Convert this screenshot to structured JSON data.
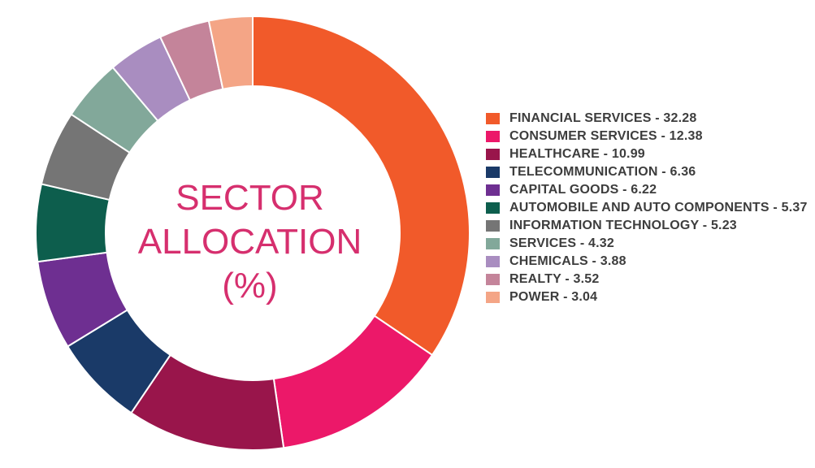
{
  "center_title": {
    "line1": "SECTOR",
    "line2": "ALLOCATION",
    "line3": "(%)"
  },
  "chart_data": {
    "type": "pie",
    "donut": true,
    "title": "SECTOR ALLOCATION (%)",
    "legend_position": "right",
    "categories": [
      "FINANCIAL SERVICES",
      "CONSUMER SERVICES",
      "HEALTHCARE",
      "TELECOMMUNICATION",
      "CAPITAL GOODS",
      "AUTOMOBILE AND AUTO COMPONENTS",
      "INFORMATION TECHNOLOGY",
      "SERVICES",
      "CHEMICALS",
      "REALTY",
      "POWER"
    ],
    "values": [
      32.28,
      12.38,
      10.99,
      6.36,
      6.22,
      5.37,
      5.23,
      4.32,
      3.88,
      3.52,
      3.04
    ],
    "colors": [
      "#f15a2a",
      "#ec1869",
      "#99154b",
      "#1a3a68",
      "#6e2f91",
      "#0d5e4d",
      "#757575",
      "#82a89a",
      "#a98dc0",
      "#c4849a",
      "#f4a586"
    ],
    "legend_labels": [
      "FINANCIAL SERVICES - 32.28",
      "CONSUMER SERVICES - 12.38",
      "HEALTHCARE - 10.99",
      "TELECOMMUNICATION - 6.36",
      "CAPITAL GOODS - 6.22",
      "AUTOMOBILE AND AUTO COMPONENTS  - 5.37",
      "INFORMATION TECHNOLOGY - 5.23",
      "SERVICES - 4.32",
      "CHEMICALS - 3.88",
      "REALTY - 3.52",
      "POWER - 3.04"
    ]
  }
}
